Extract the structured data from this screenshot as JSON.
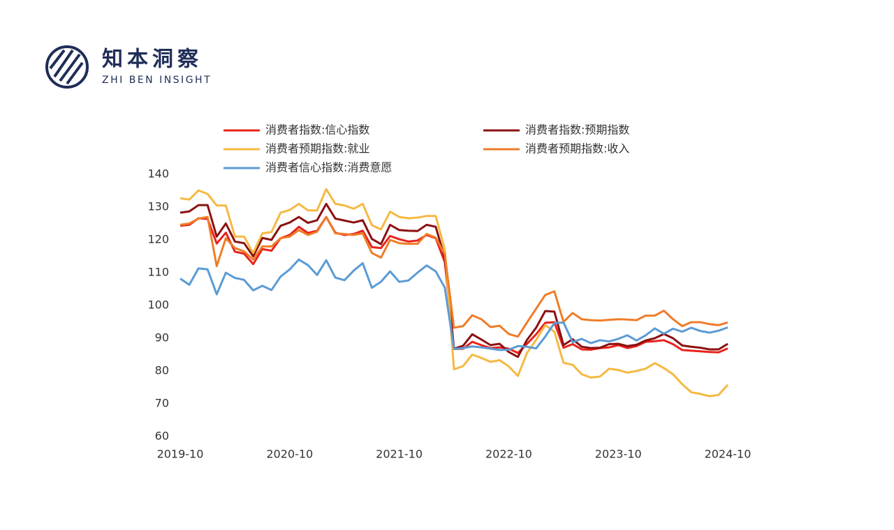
{
  "logo": {
    "name": "知本洞察",
    "subtitle": "ZHI BEN INSIGHT"
  },
  "chart_data": {
    "type": "line",
    "categories": [
      "2019-10",
      null,
      null,
      null,
      null,
      null,
      null,
      null,
      null,
      null,
      null,
      null,
      "2020-10",
      null,
      null,
      null,
      null,
      null,
      null,
      null,
      null,
      null,
      null,
      null,
      "2021-10",
      null,
      null,
      null,
      null,
      null,
      null,
      null,
      null,
      null,
      null,
      null,
      "2022-10",
      null,
      null,
      null,
      null,
      null,
      null,
      null,
      null,
      null,
      null,
      null,
      "2023-10",
      null,
      null,
      null,
      null,
      null,
      null,
      null,
      null,
      null,
      null,
      null,
      "2024-10"
    ],
    "ylim": [
      60,
      140
    ],
    "yticks": [
      60,
      70,
      80,
      90,
      100,
      110,
      120,
      130,
      140
    ],
    "grid": false,
    "series": [
      {
        "name": "消费者指数:信心指数",
        "color": "#e8231b",
        "values": [
          124.3,
          124.6,
          126.6,
          126.4,
          118.9,
          122.2,
          116.4,
          115.8,
          112.6,
          117.2,
          116.7,
          120.5,
          121.5,
          124.0,
          122.1,
          122.8,
          127.0,
          122.2,
          121.5,
          121.8,
          122.8,
          117.8,
          117.5,
          121.2,
          120.2,
          119.5,
          119.8,
          121.5,
          120.5,
          113.2,
          86.7,
          86.8,
          88.9,
          87.9,
          87.0,
          87.2,
          86.8,
          85.5,
          88.3,
          91.2,
          94.7,
          94.9,
          87.1,
          88.2,
          86.6,
          86.5,
          87.0,
          87.2,
          87.9,
          87.0,
          87.6,
          88.9,
          89.1,
          89.4,
          88.2,
          86.4,
          86.2,
          86.0,
          85.8,
          85.7,
          86.9
        ]
      },
      {
        "name": "消费者指数:预期指数",
        "color": "#8b1010",
        "values": [
          128.3,
          128.7,
          130.6,
          130.6,
          121.0,
          125.0,
          119.5,
          119.0,
          115.0,
          120.6,
          120.0,
          124.3,
          125.3,
          127.0,
          125.2,
          126.0,
          131.0,
          126.5,
          125.9,
          125.3,
          126.0,
          120.3,
          118.7,
          124.6,
          123.0,
          122.8,
          122.7,
          124.6,
          124.0,
          114.4,
          86.8,
          87.7,
          91.2,
          89.6,
          87.9,
          88.3,
          85.8,
          84.3,
          89.5,
          93.2,
          98.3,
          98.1,
          87.9,
          89.7,
          87.4,
          87.0,
          87.1,
          88.2,
          88.3,
          87.6,
          88.0,
          89.3,
          90.0,
          91.3,
          90.0,
          87.8,
          87.4,
          87.1,
          86.6,
          86.6,
          88.3
        ]
      },
      {
        "name": "消费者预期指数:就业",
        "color": "#f5b942",
        "values": [
          132.7,
          132.3,
          135.1,
          134.0,
          130.5,
          130.5,
          121.0,
          121.0,
          116.0,
          122.0,
          122.4,
          128.3,
          129.1,
          131.0,
          129.0,
          129.0,
          135.5,
          131.0,
          130.5,
          129.5,
          131.0,
          124.5,
          123.2,
          128.6,
          127.0,
          126.6,
          126.8,
          127.3,
          127.3,
          117.0,
          80.5,
          81.5,
          85.0,
          84.0,
          82.8,
          83.3,
          81.4,
          78.5,
          85.5,
          89.5,
          94.0,
          92.0,
          82.5,
          81.9,
          79.0,
          78.0,
          78.3,
          80.7,
          80.3,
          79.5,
          80.0,
          80.7,
          82.4,
          80.9,
          79.0,
          76.0,
          73.5,
          73.0,
          72.3,
          72.7,
          75.8
        ]
      },
      {
        "name": "消费者预期指数:收入",
        "color": "#f07c28",
        "values": [
          124.6,
          125.0,
          126.5,
          127.0,
          112.0,
          120.5,
          117.5,
          116.5,
          114.0,
          118.0,
          118.0,
          120.5,
          121.0,
          123.0,
          121.5,
          122.5,
          127.0,
          122.0,
          121.8,
          121.5,
          122.0,
          116.0,
          114.6,
          120.0,
          119.0,
          118.8,
          118.8,
          121.8,
          120.7,
          115.5,
          93.2,
          93.7,
          97.0,
          95.8,
          93.4,
          93.8,
          91.3,
          90.5,
          94.8,
          99.0,
          103.2,
          104.3,
          95.0,
          97.7,
          95.8,
          95.5,
          95.4,
          95.6,
          95.8,
          95.7,
          95.5,
          96.9,
          96.9,
          98.4,
          95.8,
          93.7,
          94.9,
          94.9,
          94.3,
          94.0,
          94.8
        ]
      },
      {
        "name": "消费者信心指数:消费意愿",
        "color": "#5b9bd5",
        "values": [
          108.2,
          106.3,
          111.3,
          111.0,
          103.4,
          110.0,
          108.4,
          107.8,
          104.6,
          106.0,
          104.7,
          108.8,
          111.0,
          114.0,
          112.3,
          109.3,
          113.8,
          108.5,
          107.7,
          110.6,
          112.9,
          105.4,
          107.2,
          110.4,
          107.2,
          107.6,
          110.0,
          112.2,
          110.4,
          105.4,
          86.7,
          87.0,
          87.5,
          87.2,
          86.8,
          86.4,
          86.5,
          87.6,
          87.4,
          86.9,
          90.5,
          94.6,
          94.8,
          88.8,
          89.8,
          88.5,
          89.4,
          89.0,
          89.8,
          90.9,
          89.3,
          90.9,
          93.0,
          91.4,
          92.9,
          92.0,
          93.2,
          92.2,
          91.7,
          92.3,
          93.3
        ]
      }
    ]
  }
}
